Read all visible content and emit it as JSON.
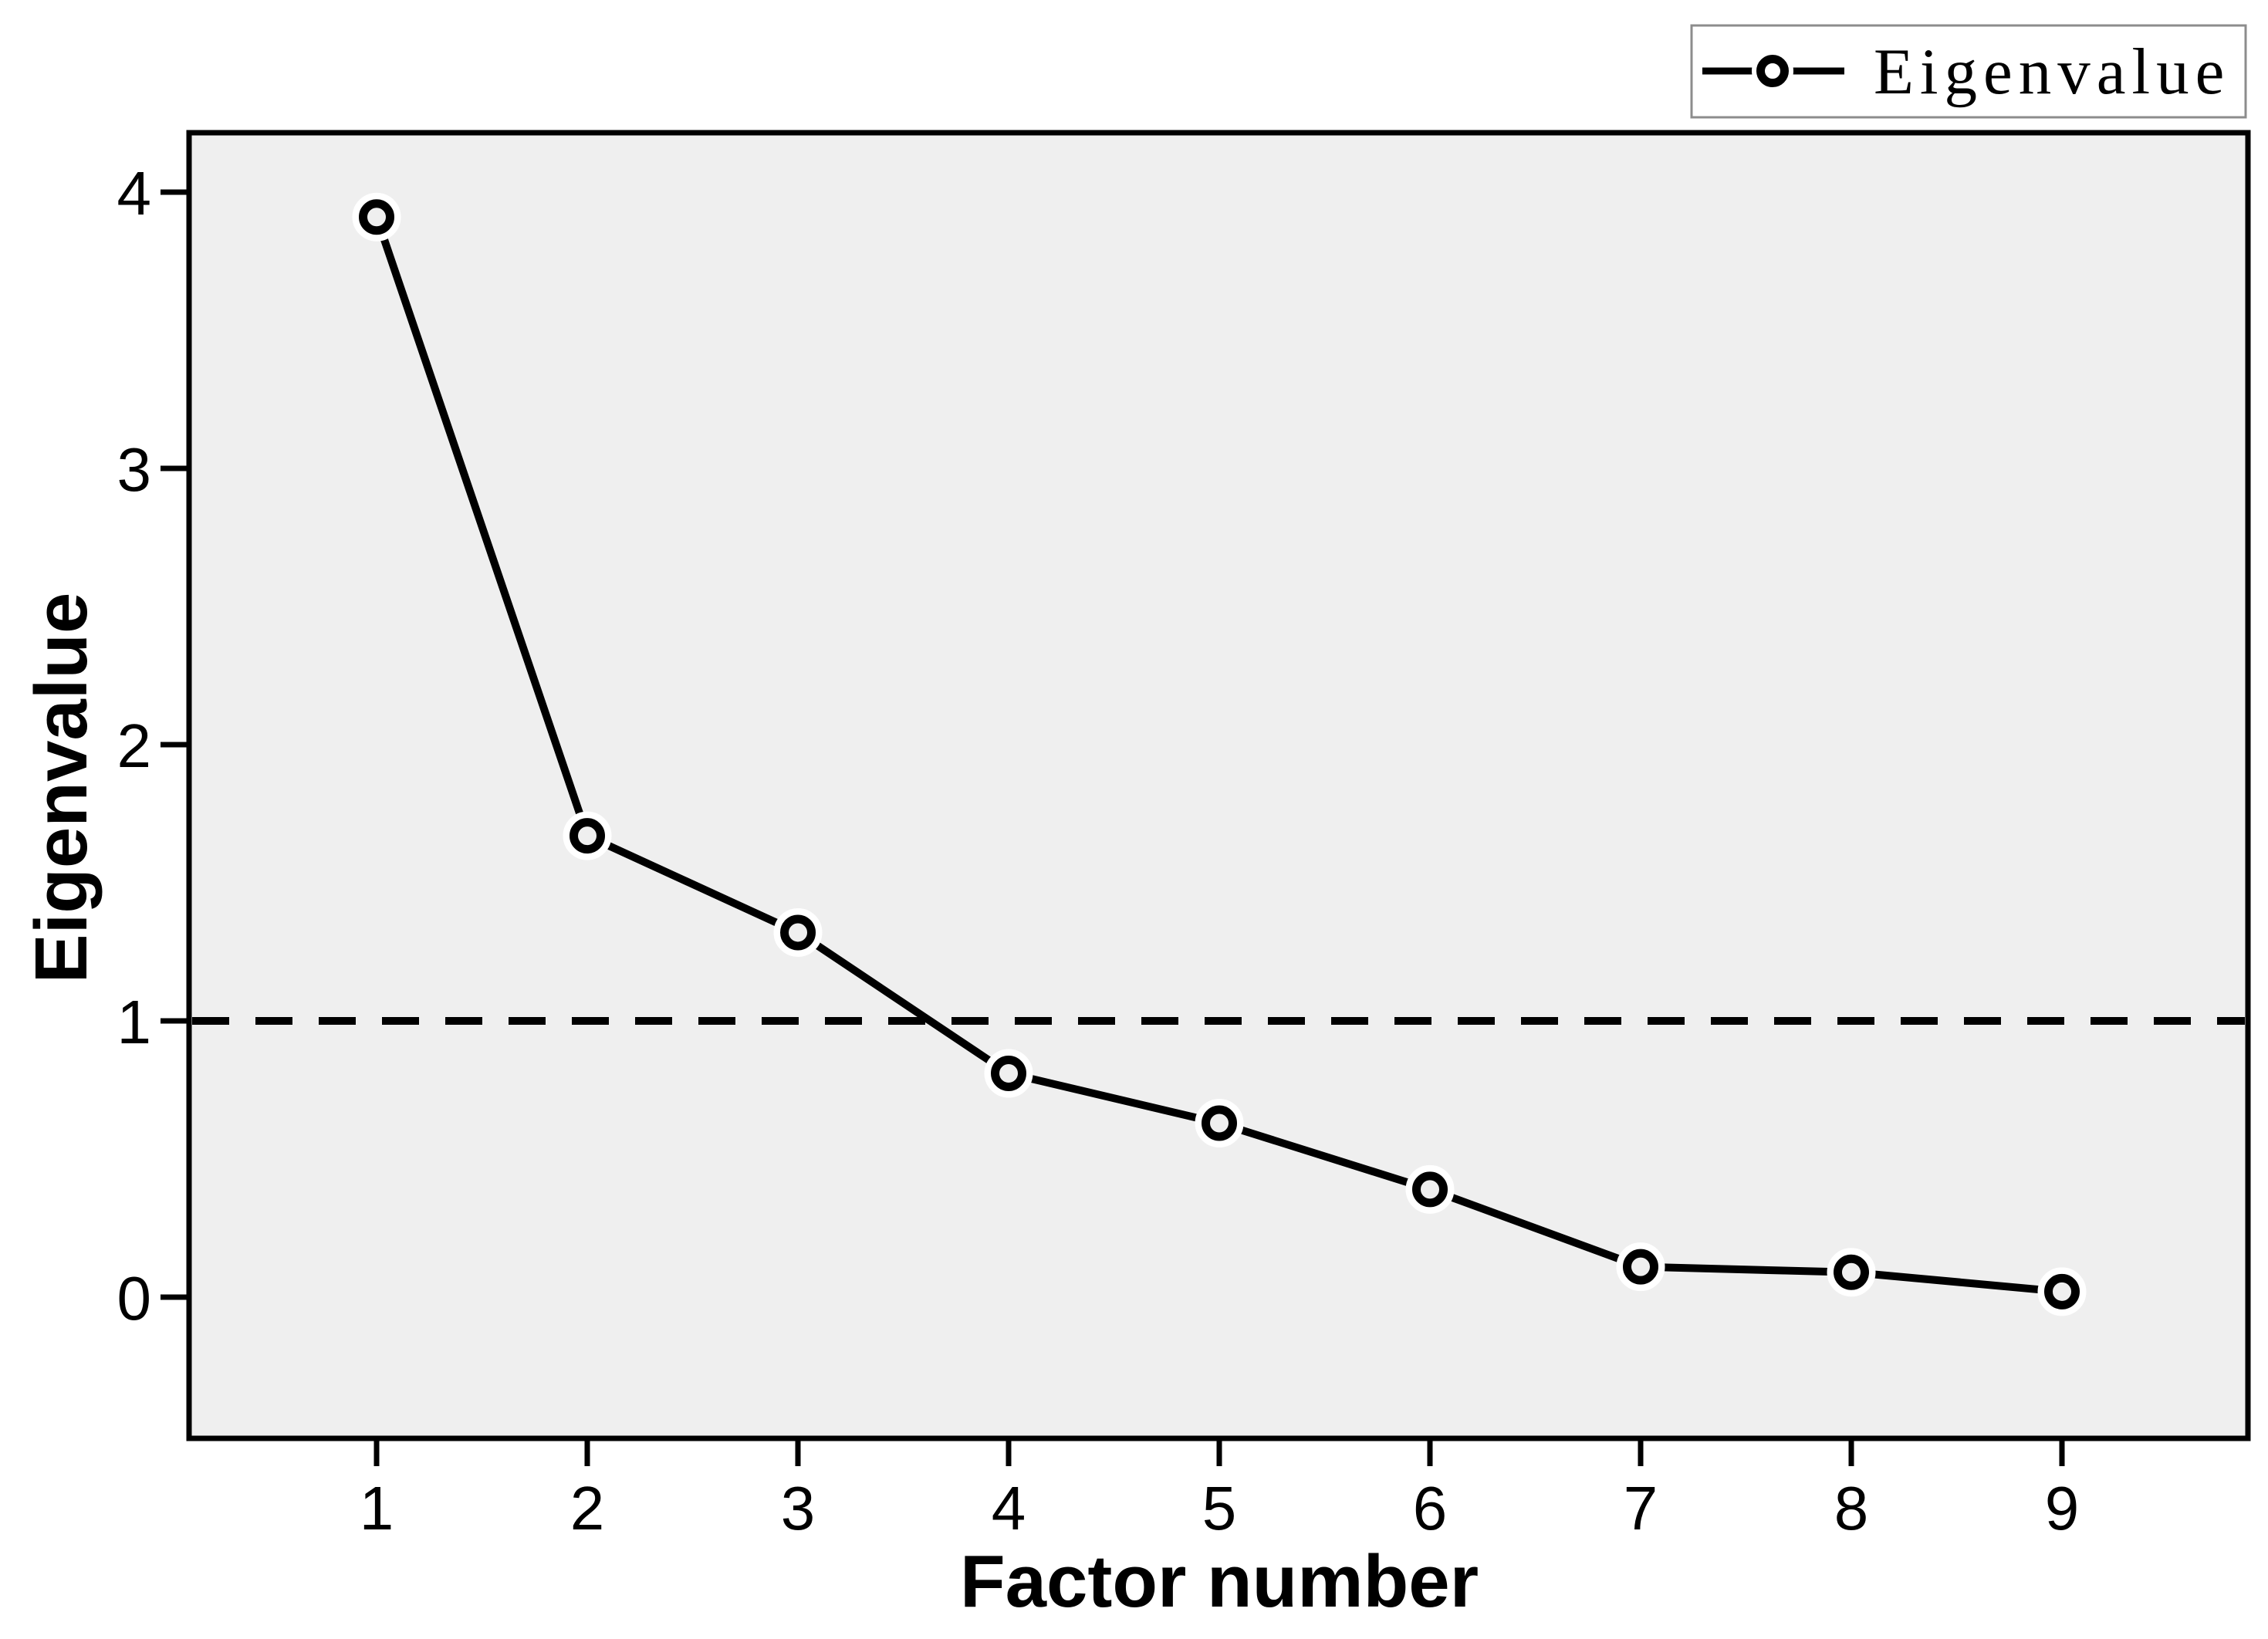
{
  "chart_data": {
    "type": "line",
    "title": "",
    "xlabel": "Factor number",
    "ylabel": "Eigenvalue",
    "categories": [
      "1",
      "2",
      "3",
      "4",
      "5",
      "6",
      "7",
      "8",
      "9"
    ],
    "series": [
      {
        "name": "Eigenvalue",
        "values": [
          3.91,
          1.67,
          1.32,
          0.81,
          0.63,
          0.39,
          0.11,
          0.09,
          0.02
        ]
      }
    ],
    "reference_line": {
      "y": 1,
      "style": "dashed"
    },
    "yticks": [
      "0",
      "1",
      "2",
      "3",
      "4"
    ],
    "ylim": [
      -0.5,
      4.2
    ],
    "xlim": [
      0.1,
      9.9
    ],
    "grid": false,
    "marker": "open-circle",
    "legend": {
      "position": "top-right",
      "entries": [
        {
          "label": "Eigenvalue",
          "marker": "open-circle-on-line"
        }
      ]
    },
    "colors": {
      "plot_background": "#efefef",
      "series_line": "#000000",
      "reference_line": "#000000",
      "axis": "#000000",
      "text": "#000000",
      "legend_border": "#8c8c8c",
      "legend_background": "#ffffff"
    }
  }
}
